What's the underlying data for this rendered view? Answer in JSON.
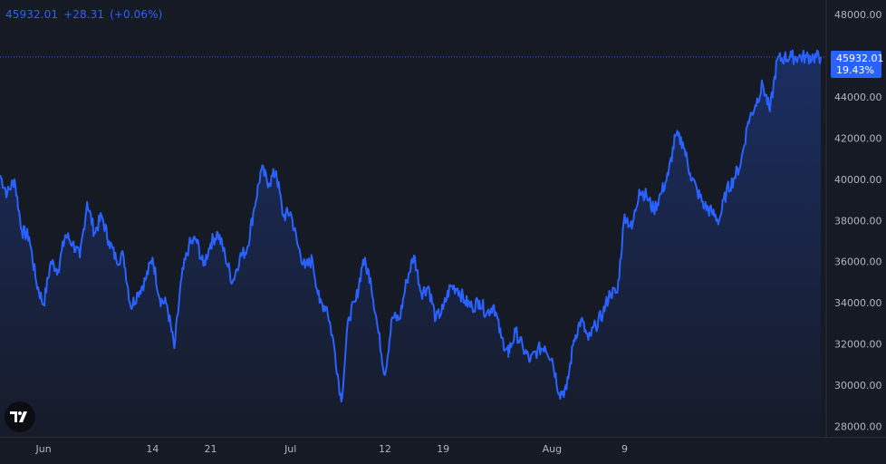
{
  "header": {
    "last_value": "45932.01",
    "change": "+28.31",
    "change_pct": "(+0.06%)"
  },
  "badge": {
    "price": "45932.01",
    "pct": "19.43%"
  },
  "colors": {
    "background": "#161a25",
    "line": "#2962ff",
    "axis_text": "#b2b5be",
    "badge": "#2962ff"
  },
  "logo_icon": "tradingview-logo",
  "chart_data": {
    "type": "area",
    "yticks": [
      "48000.00",
      "46000.00",
      "44000.00",
      "42000.00",
      "40000.00",
      "38000.00",
      "36000.00",
      "34000.00",
      "32000.00",
      "30000.00",
      "28000.00"
    ],
    "ylim": [
      27500,
      48700
    ],
    "xticks": [
      "Jun",
      "14",
      "21",
      "Jul",
      "12",
      "19",
      "Aug",
      "9"
    ],
    "series": [
      {
        "x": [
          0,
          2,
          4,
          6,
          8,
          10,
          12,
          14,
          16,
          18,
          20,
          22,
          24,
          26,
          28,
          30,
          32,
          34,
          36,
          38,
          40,
          42,
          44,
          46,
          48,
          50,
          52,
          54,
          56,
          58,
          60,
          62,
          64,
          66,
          68,
          70,
          72,
          74,
          76,
          78,
          80,
          82,
          84,
          86,
          88,
          90,
          92,
          94,
          96,
          98,
          100,
          102,
          104,
          106,
          108,
          110,
          112,
          114,
          116,
          118,
          120,
          122,
          124,
          126,
          128,
          130,
          132,
          134,
          136,
          138,
          140
        ],
        "y": [
          40200,
          39300,
          40000,
          37500,
          37200,
          35000,
          33900,
          36000,
          35600,
          37300,
          36900,
          36200,
          38900,
          37400,
          38200,
          37000,
          36100,
          36300,
          33800,
          34500,
          35100,
          36200,
          34200,
          33900,
          31800,
          35200,
          36800,
          37100,
          35800,
          36900,
          37400,
          36300,
          35000,
          36200,
          36600,
          38600,
          40500,
          39800,
          40400,
          38200,
          38400,
          36800,
          35700,
          36100,
          34000,
          33800,
          31900,
          29200,
          33300,
          34100,
          36100,
          35200,
          32800,
          30500,
          33300,
          33200,
          35100,
          36300,
          34500,
          34800,
          33200,
          33700,
          34800,
          34700,
          34100,
          33800,
          34100,
          33500,
          33900,
          32300,
          31600
        ]
      },
      {
        "x": [
          140,
          142,
          144,
          146,
          148,
          150,
          152,
          154,
          156,
          158,
          160,
          162,
          164,
          166,
          168,
          170,
          172,
          174,
          176,
          178,
          180,
          182,
          184,
          186,
          188,
          190,
          192,
          194,
          196,
          198,
          200,
          202,
          204,
          206,
          208,
          210,
          212,
          214,
          216,
          218,
          220,
          222,
          224,
          226
        ],
        "y": [
          31600,
          32600,
          31800,
          31200,
          31700,
          31900,
          31300,
          29600,
          29800,
          32200,
          33200,
          32200,
          32900,
          33500,
          34500,
          34500,
          38300,
          37600,
          39500,
          39200,
          38500,
          39300,
          40200,
          42100,
          41800,
          40300,
          39400,
          38700,
          38400,
          38000,
          39400,
          40000,
          40800,
          42800,
          43600,
          44600,
          43300,
          45800,
          45900,
          45932,
          45932,
          45932,
          45932,
          45932
        ]
      }
    ]
  }
}
